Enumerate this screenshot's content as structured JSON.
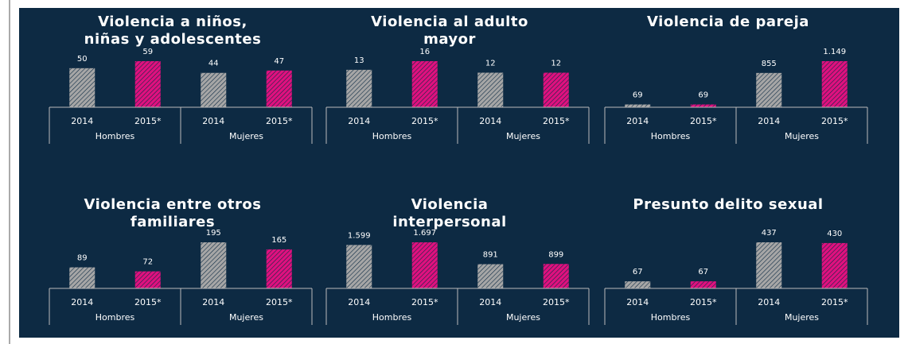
{
  "chart_data": [
    {
      "type": "bar",
      "title": [
        "Violencia a niños,",
        "niñas y adolescentes"
      ],
      "categories": [
        "2014",
        "2015*",
        "2014",
        "2015*"
      ],
      "groups": [
        "Hombres",
        "Mujeres"
      ],
      "values": [
        50,
        59,
        44,
        47
      ],
      "colors": [
        "#a6a6a6",
        "#e0107f",
        "#a6a6a6",
        "#e0107f"
      ]
    },
    {
      "type": "bar",
      "title": [
        "Violencia al adulto",
        "mayor"
      ],
      "categories": [
        "2014",
        "2015*",
        "2014",
        "2015*"
      ],
      "groups": [
        "Hombres",
        "Mujeres"
      ],
      "values": [
        13,
        16,
        12,
        12
      ],
      "colors": [
        "#a6a6a6",
        "#e0107f",
        "#a6a6a6",
        "#e0107f"
      ]
    },
    {
      "type": "bar",
      "title": [
        "Violencia de pareja"
      ],
      "categories": [
        "2014",
        "2015*",
        "2014",
        "2015*"
      ],
      "groups": [
        "Hombres",
        "Mujeres"
      ],
      "values": [
        69,
        69,
        855,
        1149
      ],
      "value_labels": [
        "69",
        "69",
        "855",
        "1.149"
      ],
      "colors": [
        "#a6a6a6",
        "#e0107f",
        "#a6a6a6",
        "#e0107f"
      ]
    },
    {
      "type": "bar",
      "title": [
        "Violencia entre otros",
        "familiares"
      ],
      "categories": [
        "2014",
        "2015*",
        "2014",
        "2015*"
      ],
      "groups": [
        "Hombres",
        "Mujeres"
      ],
      "values": [
        89,
        72,
        195,
        165
      ],
      "colors": [
        "#a6a6a6",
        "#e0107f",
        "#a6a6a6",
        "#e0107f"
      ]
    },
    {
      "type": "bar",
      "title": [
        "Violencia",
        "interpersonal"
      ],
      "categories": [
        "2014",
        "2015*",
        "2014",
        "2015*"
      ],
      "groups": [
        "Hombres",
        "Mujeres"
      ],
      "values": [
        1599,
        1697,
        891,
        899
      ],
      "value_labels": [
        "1.599",
        "1.697",
        "891",
        "899"
      ],
      "colors": [
        "#a6a6a6",
        "#e0107f",
        "#a6a6a6",
        "#e0107f"
      ]
    },
    {
      "type": "bar",
      "title": [
        "Presunto delito sexual"
      ],
      "categories": [
        "2014",
        "2015*",
        "2014",
        "2015*"
      ],
      "groups": [
        "Hombres",
        "Mujeres"
      ],
      "values": [
        67,
        67,
        437,
        430
      ],
      "colors": [
        "#a6a6a6",
        "#e0107f",
        "#a6a6a6",
        "#e0107f"
      ]
    }
  ]
}
